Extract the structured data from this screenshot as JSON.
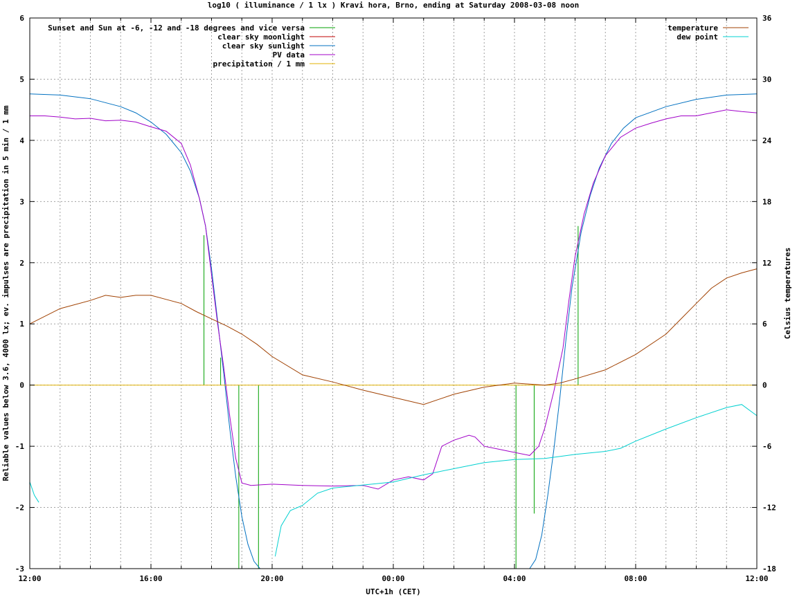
{
  "chart_data": {
    "type": "line",
    "title": "log10 ( illuminance / 1 lx ) Kravi hora, Brno, ending at Saturday 2008-03-08 noon",
    "xlabel": "UTC+1h (CET)",
    "ylabel": "Reliable values below 3.6, 4000 lx; ev. impulses are precipitation in 5 min / 1 mm",
    "y2label": "Celsius temperatures",
    "xlim": [
      0,
      24
    ],
    "ylim": [
      -3,
      6
    ],
    "y2lim": [
      -18,
      36
    ],
    "x_ticks": [
      {
        "x": 0,
        "label": "12:00"
      },
      {
        "x": 4,
        "label": "16:00"
      },
      {
        "x": 8,
        "label": "20:00"
      },
      {
        "x": 12,
        "label": "00:00"
      },
      {
        "x": 16,
        "label": "04:00"
      },
      {
        "x": 20,
        "label": "08:00"
      },
      {
        "x": 24,
        "label": "12:00"
      }
    ],
    "y_ticks": [
      "-3",
      "-2",
      "-1",
      "0",
      "1",
      "2",
      "3",
      "4",
      "5",
      "6"
    ],
    "y2_ticks": [
      "-18",
      "-12",
      "-6",
      "0",
      "6",
      "12",
      "18",
      "24",
      "30",
      "36"
    ],
    "grid": true,
    "legend_left": [
      {
        "name": "Sunset and Sun at -6, -12 and -18 degrees and vice versa",
        "color": "#00a000"
      },
      {
        "name": "clear sky moonlight",
        "color": "#c00000"
      },
      {
        "name": "clear sky sunlight",
        "color": "#0070c0"
      },
      {
        "name": "PV data",
        "color": "#a000c8"
      },
      {
        "name": "precipitation / 1 mm",
        "color": "#e0b000"
      }
    ],
    "legend_right": [
      {
        "name": "temperature",
        "color": "#a04000"
      },
      {
        "name": "dew point",
        "color": "#00d0d0"
      }
    ],
    "impulses": [
      {
        "x": 5.75,
        "y": 2.45
      },
      {
        "x": 6.3,
        "y": 0.45
      },
      {
        "x": 6.9,
        "y": -3
      },
      {
        "x": 7.55,
        "y": -3
      },
      {
        "x": 16.05,
        "y": -3
      },
      {
        "x": 16.65,
        "y": -2.1
      },
      {
        "x": 17.4,
        "y": 0
      },
      {
        "x": 18.1,
        "y": 2.6
      }
    ],
    "series": [
      {
        "name": "clear sky sunlight",
        "axis": "y",
        "color": "#0070c0",
        "x": [
          0,
          1,
          2,
          3,
          3.5,
          4,
          4.5,
          5,
          5.3,
          5.6,
          5.8,
          6.0,
          6.2,
          6.4,
          6.6,
          6.8,
          7.0,
          7.2,
          7.4,
          7.6,
          16.5,
          16.7,
          16.9,
          17.1,
          17.3,
          17.5,
          17.7,
          17.9,
          18.2,
          18.5,
          18.8,
          19.2,
          19.6,
          20,
          21,
          22,
          23,
          24
        ],
        "y": [
          4.76,
          4.74,
          4.68,
          4.55,
          4.45,
          4.3,
          4.1,
          3.8,
          3.5,
          3.05,
          2.6,
          1.9,
          1.05,
          0.2,
          -0.7,
          -1.5,
          -2.15,
          -2.6,
          -2.88,
          -3.0,
          -3.0,
          -2.85,
          -2.45,
          -1.8,
          -1.05,
          -0.2,
          0.75,
          1.6,
          2.5,
          3.1,
          3.55,
          3.95,
          4.2,
          4.37,
          4.55,
          4.67,
          4.74,
          4.76
        ]
      },
      {
        "name": "PV data",
        "axis": "y",
        "color": "#a000c8",
        "x": [
          0,
          0.5,
          1,
          1.5,
          2,
          2.5,
          3,
          3.5,
          4,
          4.5,
          5,
          5.3,
          5.6,
          5.8,
          6.0,
          6.2,
          6.4,
          6.6,
          6.8,
          7.0,
          7.3,
          8,
          9,
          10,
          11,
          11.5,
          12,
          12.5,
          13,
          13.3,
          13.6,
          14,
          14.5,
          14.7,
          15,
          15.5,
          16,
          16.5,
          16.8,
          17.0,
          17.3,
          17.6,
          17.8,
          18.0,
          18.3,
          18.6,
          19,
          19.5,
          20,
          20.5,
          21,
          21.5,
          22,
          22.5,
          23,
          23.5,
          24
        ],
        "y": [
          4.4,
          4.4,
          4.38,
          4.35,
          4.36,
          4.32,
          4.33,
          4.3,
          4.22,
          4.15,
          3.95,
          3.6,
          3.05,
          2.6,
          1.8,
          1.0,
          0.3,
          -0.5,
          -1.2,
          -1.6,
          -1.64,
          -1.62,
          -1.64,
          -1.65,
          -1.64,
          -1.7,
          -1.55,
          -1.5,
          -1.55,
          -1.45,
          -1.0,
          -0.9,
          -0.82,
          -0.85,
          -1.0,
          -1.05,
          -1.1,
          -1.15,
          -1.0,
          -0.7,
          -0.1,
          0.6,
          1.4,
          2.1,
          2.8,
          3.3,
          3.75,
          4.05,
          4.2,
          4.28,
          4.35,
          4.4,
          4.4,
          4.45,
          4.5,
          4.47,
          4.45
        ]
      },
      {
        "name": "precipitation / 1 mm",
        "axis": "y",
        "color": "#e0b000",
        "x": [
          0,
          24
        ],
        "y": [
          0,
          0
        ]
      },
      {
        "name": "temperature",
        "axis": "y2",
        "color": "#a04000",
        "x": [
          0,
          1,
          2,
          2.5,
          3,
          3.5,
          4,
          4.5,
          5,
          5.5,
          6,
          6.5,
          7,
          7.5,
          8,
          9,
          10,
          11,
          12,
          13,
          14,
          15,
          16,
          16.5,
          17,
          17.5,
          18,
          19,
          20,
          21,
          21.5,
          22,
          22.5,
          23,
          23.5,
          24
        ],
        "y": [
          6,
          7.5,
          8.3,
          8.8,
          8.6,
          8.8,
          8.8,
          8.4,
          8,
          7.2,
          6.5,
          5.8,
          5,
          4,
          2.8,
          1,
          0.3,
          -0.5,
          -1.2,
          -1.9,
          -0.9,
          -0.2,
          0.2,
          0.1,
          0,
          0.2,
          0.6,
          1.5,
          3,
          5,
          6.5,
          8,
          9.5,
          10.5,
          11,
          11.4
        ]
      },
      {
        "name": "dew point",
        "axis": "y2",
        "color": "#00d0d0",
        "segments": [
          {
            "x": [
              0,
              0.15,
              0.3
            ],
            "y": [
              -9.5,
              -10.8,
              -11.5
            ]
          },
          {
            "x": [
              8.1,
              8.3,
              8.6,
              9,
              9.5,
              10,
              11,
              12,
              13,
              14,
              15,
              16,
              17,
              18,
              19,
              19.5,
              20,
              21,
              22,
              23,
              23.5,
              24
            ],
            "y": [
              -16.8,
              -13.8,
              -12.3,
              -11.8,
              -10.6,
              -10.1,
              -9.8,
              -9.5,
              -8.8,
              -8.2,
              -7.6,
              -7.3,
              -7.2,
              -6.8,
              -6.5,
              -6.2,
              -5.5,
              -4.3,
              -3.2,
              -2.2,
              -1.9,
              -3.0
            ]
          }
        ]
      }
    ]
  }
}
